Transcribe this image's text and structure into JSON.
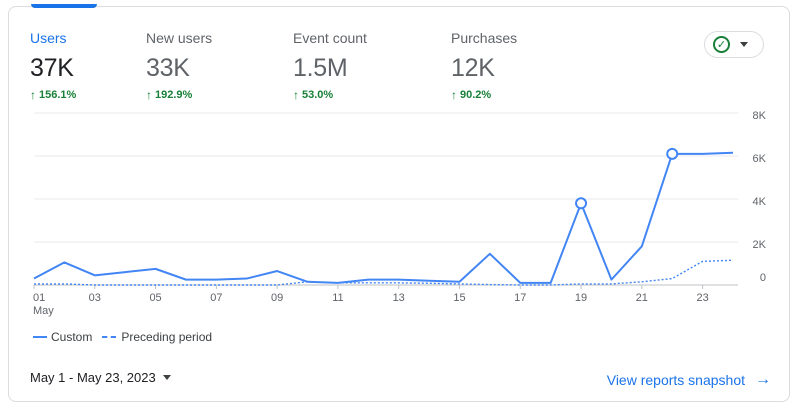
{
  "metrics": [
    {
      "label": "Users",
      "value": "37K",
      "change": "156.1%",
      "active": true
    },
    {
      "label": "New users",
      "value": "33K",
      "change": "192.9%",
      "active": false
    },
    {
      "label": "Event count",
      "value": "1.5M",
      "change": "53.0%",
      "active": false
    },
    {
      "label": "Purchases",
      "value": "12K",
      "change": "90.2%",
      "active": false
    }
  ],
  "status": {
    "icon": "check-circle-icon",
    "color": "#188038"
  },
  "chart_data": {
    "type": "line",
    "x_ticks": [
      "01",
      "03",
      "05",
      "07",
      "09",
      "11",
      "13",
      "15",
      "17",
      "19",
      "21",
      "23"
    ],
    "x_sub_label": "May",
    "y_ticks": [
      "8K",
      "6K",
      "4K",
      "2K",
      "0"
    ],
    "ylim": [
      0,
      8000
    ],
    "days": [
      1,
      2,
      3,
      4,
      5,
      6,
      7,
      8,
      9,
      10,
      11,
      12,
      13,
      14,
      15,
      16,
      17,
      18,
      19,
      20,
      21,
      22,
      23,
      24
    ],
    "series": [
      {
        "name": "Custom",
        "style": "solid",
        "color": "#4285f4",
        "values": [
          300,
          1050,
          450,
          600,
          750,
          250,
          250,
          300,
          650,
          150,
          100,
          250,
          250,
          200,
          150,
          1450,
          100,
          100,
          3800,
          250,
          1800,
          6100,
          6100,
          6150
        ],
        "markers": [
          19,
          22
        ]
      },
      {
        "name": "Preceding period",
        "style": "dashed",
        "color": "#4285f4",
        "values": [
          50,
          50,
          0,
          0,
          0,
          0,
          0,
          0,
          0,
          150,
          100,
          100,
          100,
          80,
          50,
          20,
          0,
          0,
          50,
          50,
          150,
          300,
          1100,
          1150
        ]
      }
    ],
    "grid": true,
    "legend_position": "bottom-left"
  },
  "legend": {
    "custom": "Custom",
    "preceding": "Preceding period"
  },
  "footer": {
    "date_range": "May 1 - May 23, 2023",
    "link": "View reports snapshot"
  }
}
